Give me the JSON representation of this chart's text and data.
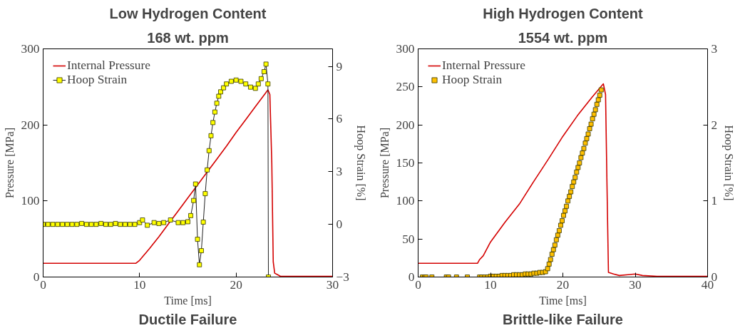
{
  "chart_data": [
    {
      "type": "line",
      "title": "Low Hydrogen Content",
      "subtitle": "168 wt. ppm",
      "xlabel": "Time [ms]",
      "ylabel": "Pressure [MPa]",
      "y2label": "Hoop Strain [%]",
      "xlim": [
        0,
        30
      ],
      "xticks": [
        0,
        10,
        20,
        30
      ],
      "ylim": [
        0,
        300
      ],
      "yticks": [
        0,
        100,
        200,
        300
      ],
      "y2lim": [
        -3,
        10
      ],
      "y2ticks": [
        -3,
        0,
        3,
        6,
        9
      ],
      "grid": false,
      "legend": "top left",
      "annotations": [
        "Ductile Failure"
      ],
      "series": [
        {
          "name": "Internal Pressure",
          "marker": "none",
          "color": "#d40000",
          "x": [
            0,
            9.6,
            10,
            11,
            12,
            13,
            14,
            15,
            16,
            17,
            18,
            19,
            20,
            21,
            22,
            23,
            23.3,
            23.5,
            23.7,
            23.85,
            24.0,
            24.3,
            24.6,
            25,
            30
          ],
          "values": [
            18,
            18,
            22,
            37,
            53,
            70,
            87,
            104,
            121,
            138,
            155,
            172,
            190,
            207,
            224,
            241,
            246,
            240,
            150,
            20,
            5,
            3,
            1,
            1,
            1
          ]
        },
        {
          "name": "Hoop Strain",
          "marker": "square",
          "axis": "y2",
          "color": "#ffff00",
          "x": [
            0,
            0.5,
            1,
            1.5,
            2,
            2.5,
            3,
            3.5,
            4,
            4.5,
            5,
            5.5,
            6,
            6.5,
            7,
            7.5,
            8,
            8.5,
            9,
            9.5,
            10,
            10.3,
            10.8,
            11.5,
            12,
            12.5,
            13.2,
            14,
            14.5,
            15,
            15.3,
            15.6,
            15.8,
            16.0,
            16.2,
            16.4,
            16.6,
            16.8,
            17.0,
            17.2,
            17.4,
            17.6,
            17.8,
            18.0,
            18.2,
            18.4,
            18.7,
            19.0,
            19.5,
            20.0,
            20.5,
            21.0,
            21.5,
            22.0,
            22.3,
            22.6,
            22.9,
            23.1,
            23.3,
            23.35
          ],
          "values": [
            0,
            0,
            0,
            0,
            0,
            0,
            0,
            0,
            0.05,
            0,
            0,
            0,
            0.05,
            0,
            0,
            0.05,
            0,
            0,
            0,
            0,
            0.1,
            0.25,
            -0.05,
            0.1,
            0.05,
            0.1,
            0.25,
            0.1,
            0.1,
            0.15,
            0.5,
            1.36,
            2.3,
            -0.85,
            -2.3,
            -1.5,
            0.13,
            1.75,
            3.1,
            4.2,
            5.05,
            5.8,
            6.4,
            6.9,
            7.3,
            7.55,
            7.78,
            8.0,
            8.15,
            8.22,
            8.15,
            8.0,
            7.82,
            7.75,
            8.0,
            8.3,
            8.7,
            9.13,
            8.0,
            -3
          ]
        }
      ]
    },
    {
      "type": "line",
      "title": "High Hydrogen Content",
      "subtitle": "1554 wt. ppm",
      "xlabel": "Time [ms]",
      "ylabel": "Pressure [MPa]",
      "y2label": "Hoop Strain [%]",
      "xlim": [
        0,
        40
      ],
      "xticks": [
        0,
        10,
        20,
        30,
        40
      ],
      "ylim": [
        0,
        300
      ],
      "yticks": [
        0,
        50,
        100,
        150,
        200,
        250,
        300
      ],
      "y2lim": [
        0,
        3
      ],
      "y2ticks": [
        0,
        1,
        2,
        3
      ],
      "grid": false,
      "legend": "top left",
      "annotations": [
        "Brittle-like Failure"
      ],
      "series": [
        {
          "name": "Internal Pressure",
          "marker": "none",
          "color": "#d40000",
          "x": [
            0,
            8.2,
            8.5,
            9,
            10,
            12,
            14,
            16,
            18,
            20,
            22,
            24,
            25.6,
            25.9,
            26.1,
            26.3,
            27,
            27.8,
            29,
            30,
            31,
            33,
            40
          ],
          "values": [
            18,
            18,
            23,
            28,
            46,
            72,
            96,
            126,
            155,
            185,
            212,
            236,
            254,
            240,
            120,
            6,
            4,
            2,
            3,
            4,
            2,
            1,
            1
          ]
        },
        {
          "name": "Hoop Strain",
          "type": "scatter",
          "marker": "square",
          "axis": "y2",
          "color": "#ffc000",
          "x": [
            0.6,
            0.9,
            1.1,
            1.9,
            3.9,
            4.2,
            5.3,
            6.8,
            8.5,
            8.8,
            9.2,
            9.6,
            10.0,
            10.4,
            10.8,
            11.2,
            11.6,
            12.0,
            12.4,
            12.8,
            13.2,
            13.6,
            14.0,
            14.4,
            14.8,
            15.2,
            15.6,
            16.0,
            16.4,
            16.8,
            17.2,
            17.6,
            17.9,
            18.1,
            18.3,
            18.5,
            18.7,
            18.9,
            19.1,
            19.3,
            19.5,
            19.7,
            19.9,
            20.1,
            20.3,
            20.5,
            20.7,
            20.9,
            21.1,
            21.3,
            21.5,
            21.7,
            21.9,
            22.1,
            22.3,
            22.5,
            22.7,
            22.9,
            23.1,
            23.3,
            23.5,
            23.7,
            23.9,
            24.1,
            24.3,
            24.5,
            24.7,
            24.9,
            25.1,
            25.3
          ],
          "values": [
            0,
            0,
            0,
            0,
            0,
            0,
            0,
            0,
            0,
            0,
            0,
            0,
            0.01,
            0.01,
            0.01,
            0.01,
            0.02,
            0.02,
            0.02,
            0.02,
            0.03,
            0.03,
            0.03,
            0.03,
            0.04,
            0.04,
            0.04,
            0.05,
            0.05,
            0.06,
            0.06,
            0.07,
            0.11,
            0.17,
            0.23,
            0.3,
            0.36,
            0.42,
            0.49,
            0.55,
            0.61,
            0.68,
            0.74,
            0.81,
            0.87,
            0.93,
            1.0,
            1.06,
            1.12,
            1.19,
            1.25,
            1.31,
            1.38,
            1.44,
            1.5,
            1.57,
            1.63,
            1.69,
            1.76,
            1.82,
            1.88,
            1.95,
            2.01,
            2.08,
            2.14,
            2.2,
            2.27,
            2.33,
            2.39,
            2.46
          ]
        }
      ]
    }
  ]
}
